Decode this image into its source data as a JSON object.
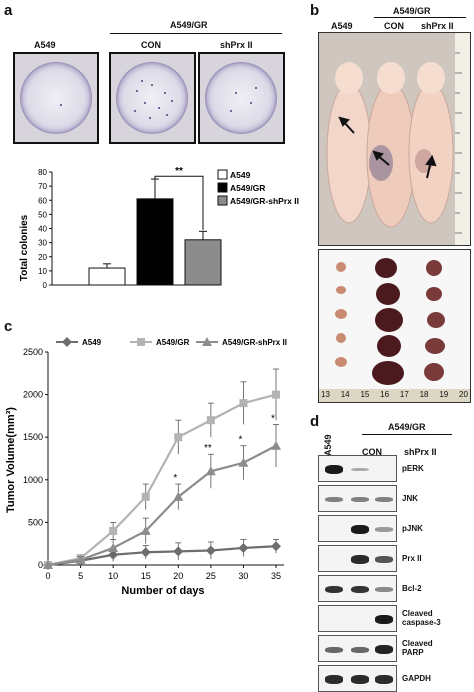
{
  "panel_labels": {
    "a": "a",
    "b": "b",
    "c": "c",
    "d": "d"
  },
  "panel_a": {
    "group_header": "A549/GR",
    "well_labels": [
      "A549",
      "CON",
      "shPrx II"
    ]
  },
  "panel_b": {
    "group_header": "A549/GR",
    "mouse_labels": [
      "A549",
      "CON",
      "shPrx II"
    ],
    "ruler_numbers": [
      "13",
      "14",
      "15",
      "16",
      "17",
      "18",
      "19",
      "20"
    ]
  },
  "panel_d": {
    "col_labels": [
      "A549",
      "CON",
      "shPrx II"
    ],
    "group_header": "A549/GR",
    "rows": [
      {
        "label": "pERK",
        "bands": [
          0.95,
          0.1,
          0.0
        ]
      },
      {
        "label": "JNK",
        "bands": [
          0.35,
          0.35,
          0.35
        ]
      },
      {
        "label": "pJNK",
        "bands": [
          0.0,
          0.95,
          0.2
        ]
      },
      {
        "label": "Prx II",
        "bands": [
          0.0,
          0.85,
          0.6
        ]
      },
      {
        "label": "Bcl-2",
        "bands": [
          0.8,
          0.8,
          0.3
        ]
      },
      {
        "label": "Cleaved\ncaspase-3",
        "bands": [
          0.0,
          0.0,
          0.95
        ]
      },
      {
        "label": "Cleaved\nPARP",
        "bands": [
          0.5,
          0.5,
          0.9
        ]
      },
      {
        "label": "GAPDH",
        "bands": [
          0.85,
          0.85,
          0.85
        ]
      }
    ]
  },
  "chart_data": [
    {
      "type": "bar",
      "categories": [
        "A549",
        "A549/GR",
        "A549/GR-shPrx II"
      ],
      "values": [
        12,
        61,
        32
      ],
      "errors": [
        3,
        14,
        6
      ],
      "colors": [
        "#ffffff",
        "#000000",
        "#8c8c8c"
      ],
      "legend": [
        "A549",
        "A549/GR",
        "A549/GR-shPrx II"
      ],
      "legend_position": "top-right",
      "ylabel": "Total colonies",
      "ylim": [
        0,
        80
      ],
      "yticks": [
        0,
        10,
        20,
        30,
        40,
        50,
        60,
        70,
        80
      ],
      "significance": "**"
    },
    {
      "type": "line",
      "x": [
        0,
        5,
        10,
        15,
        20,
        25,
        30,
        35
      ],
      "xticks": [
        "0",
        "5",
        "10",
        "15",
        "20",
        "25",
        "30",
        "35"
      ],
      "xlabel": "Number of days",
      "ylabel": "Tumor Volume(mm³)",
      "ylim": [
        0,
        2500
      ],
      "yticks": [
        "0",
        "500",
        "1000",
        "1500",
        "2000",
        "2500"
      ],
      "legend_position": "top",
      "series": [
        {
          "name": "A549",
          "color": "#6e6e6e",
          "marker": "diamond",
          "values": [
            0,
            50,
            120,
            150,
            160,
            170,
            200,
            220
          ],
          "errors": [
            0,
            30,
            80,
            80,
            100,
            100,
            100,
            80
          ]
        },
        {
          "name": "A549/GR",
          "color": "#b3b3b3",
          "marker": "square",
          "values": [
            0,
            80,
            400,
            800,
            1500,
            1700,
            1900,
            2000
          ],
          "errors": [
            0,
            40,
            100,
            150,
            200,
            200,
            250,
            300
          ]
        },
        {
          "name": "A549/GR-shPrx II",
          "color": "#8c8c8c",
          "marker": "triangle",
          "values": [
            0,
            60,
            200,
            400,
            800,
            1100,
            1200,
            1400
          ],
          "errors": [
            0,
            40,
            100,
            150,
            150,
            200,
            200,
            250
          ]
        }
      ],
      "annotations": [
        {
          "x": 20,
          "text": "*"
        },
        {
          "x": 25,
          "text": "**"
        },
        {
          "x": 30,
          "text": "*"
        },
        {
          "x": 35,
          "text": "*"
        }
      ]
    }
  ]
}
